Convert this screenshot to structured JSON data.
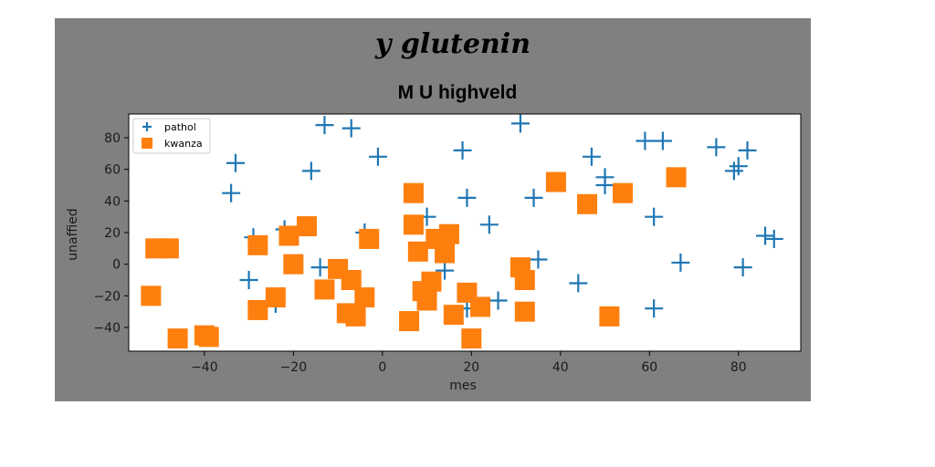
{
  "chart_data": {
    "type": "scatter",
    "suptitle": "y glutenin",
    "title": "M U highveld",
    "xlabel": "mes",
    "ylabel": "unaffied",
    "xlim": [
      -57,
      94
    ],
    "ylim": [
      -55,
      95
    ],
    "xticks": [
      -40,
      -20,
      0,
      20,
      40,
      60,
      80
    ],
    "yticks": [
      -40,
      -20,
      0,
      20,
      40,
      60,
      80
    ],
    "grid": false,
    "legend_position": "top-left",
    "series": [
      {
        "name": "pathol",
        "marker": "plus",
        "color": "#1f77b4",
        "points": [
          [
            -13,
            88
          ],
          [
            -7,
            86
          ],
          [
            31,
            89
          ],
          [
            18,
            72
          ],
          [
            -1,
            68
          ],
          [
            -34,
            45
          ],
          [
            -33,
            64
          ],
          [
            -16,
            59
          ],
          [
            19,
            42
          ],
          [
            24,
            25
          ],
          [
            10,
            30
          ],
          [
            -4,
            20
          ],
          [
            -22,
            22
          ],
          [
            -29,
            17
          ],
          [
            -30,
            -10
          ],
          [
            -24,
            -25
          ],
          [
            -14,
            -2
          ],
          [
            14,
            -4
          ],
          [
            35,
            3
          ],
          [
            26,
            -23
          ],
          [
            44,
            -12
          ],
          [
            9,
            -12
          ],
          [
            19,
            -28
          ],
          [
            34,
            42
          ],
          [
            47,
            68
          ],
          [
            50,
            50
          ],
          [
            50,
            55
          ],
          [
            59,
            78
          ],
          [
            63,
            78
          ],
          [
            75,
            74
          ],
          [
            82,
            72
          ],
          [
            79,
            59
          ],
          [
            80,
            62
          ],
          [
            61,
            30
          ],
          [
            67,
            1
          ],
          [
            81,
            -2
          ],
          [
            86,
            18
          ],
          [
            88,
            16
          ],
          [
            61,
            -28
          ]
        ]
      },
      {
        "name": "kwanza",
        "marker": "square",
        "color": "#ff7f0e",
        "points": [
          [
            -51,
            10
          ],
          [
            -48,
            10
          ],
          [
            -52,
            -20
          ],
          [
            -46,
            -47
          ],
          [
            -40,
            -45
          ],
          [
            -39,
            -46
          ],
          [
            -28,
            12
          ],
          [
            -28,
            -29
          ],
          [
            -24,
            -21
          ],
          [
            -21,
            18
          ],
          [
            -20,
            0
          ],
          [
            -17,
            24
          ],
          [
            -13,
            -16
          ],
          [
            -10,
            -3
          ],
          [
            -8,
            -31
          ],
          [
            -7,
            -10
          ],
          [
            -6,
            -33
          ],
          [
            -4,
            -21
          ],
          [
            -3,
            16
          ],
          [
            6,
            -36
          ],
          [
            7,
            45
          ],
          [
            7,
            25
          ],
          [
            8,
            8
          ],
          [
            9,
            -17
          ],
          [
            10,
            -23
          ],
          [
            11,
            -11
          ],
          [
            12,
            16
          ],
          [
            14,
            7
          ],
          [
            15,
            19
          ],
          [
            16,
            -32
          ],
          [
            19,
            -18
          ],
          [
            20,
            -47
          ],
          [
            22,
            -27
          ],
          [
            31,
            -2
          ],
          [
            32,
            -10
          ],
          [
            32,
            -30
          ],
          [
            39,
            52
          ],
          [
            46,
            38
          ],
          [
            51,
            -33
          ],
          [
            54,
            45
          ],
          [
            66,
            55
          ]
        ]
      }
    ]
  }
}
